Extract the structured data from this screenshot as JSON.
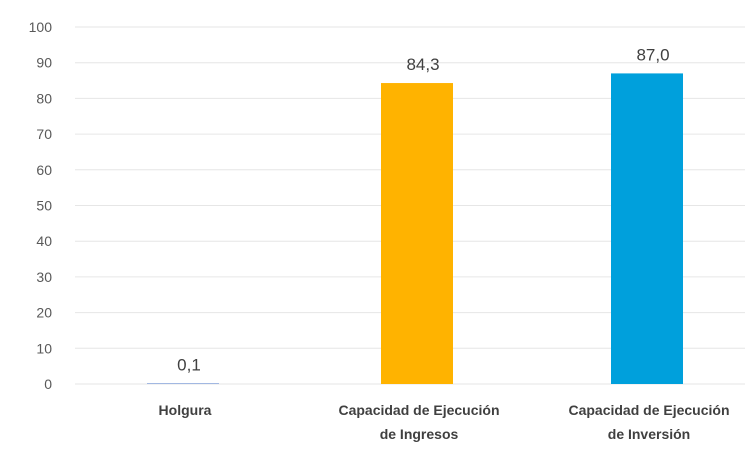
{
  "chart_data": {
    "type": "bar",
    "categories": [
      [
        "Holgura"
      ],
      [
        "Capacidad de Ejecución",
        "de Ingresos"
      ],
      [
        "Capacidad de Ejecución",
        "de Inversión"
      ]
    ],
    "values": [
      0.1,
      84.3,
      87.0
    ],
    "data_labels": [
      "0,1",
      "84,3",
      "87,0"
    ],
    "bar_colors": [
      "#4472c4",
      "#ffb300",
      "#00a0dc"
    ],
    "ylim": [
      0,
      100
    ],
    "yticks": [
      0,
      10,
      20,
      30,
      40,
      50,
      60,
      70,
      80,
      90,
      100
    ],
    "grid": true,
    "legend": "none",
    "title": "",
    "xlabel": "",
    "ylabel": ""
  }
}
